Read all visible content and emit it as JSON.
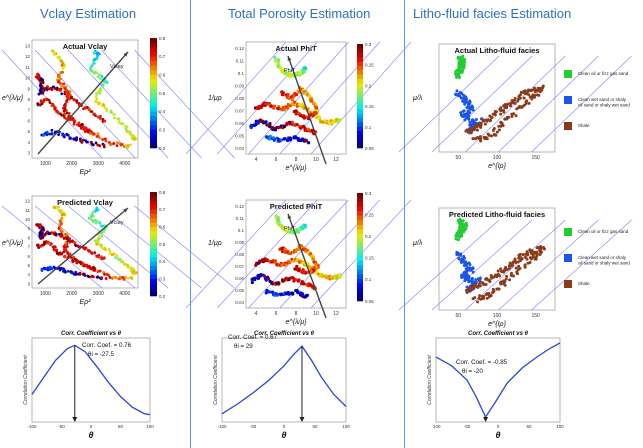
{
  "sections": [
    {
      "title": "Vclay Estimation"
    },
    {
      "title": "Total Porosity Estimation"
    },
    {
      "title": "Litho-fluid facies Estimation"
    }
  ],
  "colors": {
    "accent": "#2f6fbf",
    "divider": "#5b9bd5",
    "curve": "#2a45d8",
    "guide": "#8080ff"
  },
  "chart_data": [
    {
      "id": "vclay-actual",
      "type": "scatter",
      "title": "Actual Vclay",
      "xlabel": "Eρ²",
      "ylabel": "e^{λ/μ}",
      "xlim": [
        500,
        4500
      ],
      "ylim": [
        2,
        13
      ],
      "xticks": [
        "1000",
        "2000",
        "3000",
        "4000"
      ],
      "yticks": [
        "3",
        "4",
        "5",
        "6",
        "7",
        "8",
        "9",
        "10",
        "11",
        "12",
        "13"
      ],
      "annotation": "Vclay",
      "colorbar": {
        "min": 0.2,
        "max": 0.8,
        "ticks": [
          "0.2",
          "0.3",
          "0.4",
          "0.5",
          "0.6",
          "0.7",
          "0.8"
        ]
      }
    },
    {
      "id": "vclay-predicted",
      "type": "scatter",
      "title": "Predicted Vclay",
      "xlabel": "Eρ²",
      "ylabel": "e^{λ/μ}",
      "xlim": [
        500,
        4500
      ],
      "ylim": [
        2,
        13
      ],
      "xticks": [
        "1000",
        "2000",
        "3000",
        "4000"
      ],
      "yticks": [
        "3",
        "4",
        "5",
        "6",
        "7",
        "8",
        "9",
        "10",
        "11",
        "12"
      ],
      "annotation": "Vclay",
      "colorbar": {
        "min": 0.2,
        "max": 0.8,
        "ticks": [
          "0.2",
          "0.3",
          "0.4",
          "0.5",
          "0.6",
          "0.7",
          "0.8"
        ]
      }
    },
    {
      "id": "phit-actual",
      "type": "scatter",
      "title": "Actual PhiT",
      "xlabel": "e^{λ/μ}",
      "ylabel": "1/μρ",
      "xlim": [
        3,
        13
      ],
      "ylim": [
        0.035,
        0.125
      ],
      "xticks": [
        "4",
        "6",
        "8",
        "10",
        "12"
      ],
      "yticks": [
        "0.04",
        "0.05",
        "0.06",
        "0.07",
        "0.08",
        "0.09",
        "0.1",
        "0.11",
        "0.12"
      ],
      "annotation": "PhiT",
      "colorbar": {
        "min": 0.05,
        "max": 0.3,
        "ticks": [
          "0.05",
          "0.1",
          "0.15",
          "0.2",
          "0.25",
          "0.3"
        ]
      }
    },
    {
      "id": "phit-predicted",
      "type": "scatter",
      "title": "Predicted PhiT",
      "xlabel": "e^{λ/μ}",
      "ylabel": "1/μρ",
      "xlim": [
        3,
        13
      ],
      "ylim": [
        0.035,
        0.125
      ],
      "xticks": [
        "4",
        "6",
        "8",
        "10",
        "12"
      ],
      "yticks": [
        "0.04",
        "0.05",
        "0.06",
        "0.07",
        "0.08",
        "0.09",
        "0.1",
        "0.11",
        "0.12"
      ],
      "annotation": "PhiT",
      "colorbar": {
        "min": 0.05,
        "max": 0.3,
        "ticks": [
          "0.05",
          "0.1",
          "0.15",
          "0.2",
          "0.25",
          "0.3"
        ]
      }
    },
    {
      "id": "lff-actual",
      "type": "scatter",
      "title": "Actual Litho-fluid facies",
      "xlabel": "e^{Iρ}",
      "ylabel": "μ/λ",
      "xlim": [
        0,
        170
      ],
      "xticks": [
        "50",
        "100",
        "150"
      ],
      "legend": [
        {
          "label": "Clean oil or fizz gas sand",
          "color": "#22cc33"
        },
        {
          "label": "Clean wet sand or shaly oil sand or shaly wet sand",
          "color": "#1a55e8"
        },
        {
          "label": "Shale",
          "color": "#8b3a1a"
        }
      ]
    },
    {
      "id": "lff-predicted",
      "type": "scatter",
      "title": "Predicted Litho-fluid facies",
      "xlabel": "e^{Iρ}",
      "ylabel": "μ/λ",
      "xlim": [
        0,
        170
      ],
      "xticks": [
        "50",
        "100",
        "150"
      ],
      "legend": [
        {
          "label": "Clean oil or fizz gas sand",
          "color": "#22cc33"
        },
        {
          "label": "Clean wet sand or shaly oil sand or shaly wet sand",
          "color": "#1a55e8"
        },
        {
          "label": "Shale",
          "color": "#8b3a1a"
        }
      ]
    },
    {
      "id": "corr-vclay",
      "type": "line",
      "title": "Corr. Coefficient vs θ",
      "xlabel": "θ",
      "ylabel": "Correlation Coefficient",
      "xlim": [
        -100,
        100
      ],
      "xticks": [
        "-100",
        "-50",
        "0",
        "50",
        "100"
      ],
      "coef_label": "Corr. Coef. = 0.76",
      "theta_label": "θi = -27.5",
      "peak_x": -27.5,
      "extreme": "max",
      "x": [
        -100,
        -80,
        -60,
        -40,
        -27.5,
        -10,
        10,
        30,
        50,
        70,
        90,
        100
      ],
      "y": [
        0.3,
        0.46,
        0.62,
        0.73,
        0.76,
        0.7,
        0.56,
        0.41,
        0.28,
        0.18,
        0.12,
        0.11
      ]
    },
    {
      "id": "corr-phit",
      "type": "line",
      "title": "Corr. Coefficient vs θ",
      "xlabel": "θ",
      "ylabel": "Correlation Coefficient",
      "xlim": [
        -100,
        100
      ],
      "xticks": [
        "-100",
        "-50",
        "0",
        "50",
        "100"
      ],
      "coef_label": "Corr. Coef. = 0.67",
      "theta_label": "θi = 29",
      "peak_x": 29,
      "extreme": "max",
      "x": [
        -100,
        -75,
        -50,
        -25,
        0,
        15,
        29,
        45,
        60,
        80,
        100
      ],
      "y": [
        0.12,
        0.2,
        0.29,
        0.39,
        0.51,
        0.6,
        0.67,
        0.55,
        0.42,
        0.28,
        0.18
      ]
    },
    {
      "id": "corr-lff",
      "type": "line",
      "title": "Corr. Coefficient vs θ",
      "xlabel": "θ",
      "ylabel": "Correlation Coefficient",
      "xlim": [
        -100,
        100
      ],
      "xticks": [
        "-100",
        "-50",
        "0",
        "50",
        "100"
      ],
      "coef_label": "Corr. Coef. = -0.85",
      "theta_label": "θi = -20",
      "peak_x": -20,
      "extreme": "min",
      "x": [
        -100,
        -75,
        -50,
        -35,
        -20,
        -5,
        15,
        40,
        65,
        85,
        100
      ],
      "y": [
        0.2,
        0.05,
        -0.2,
        -0.5,
        -0.85,
        -0.6,
        -0.25,
        0.02,
        0.22,
        0.36,
        0.45
      ]
    }
  ]
}
